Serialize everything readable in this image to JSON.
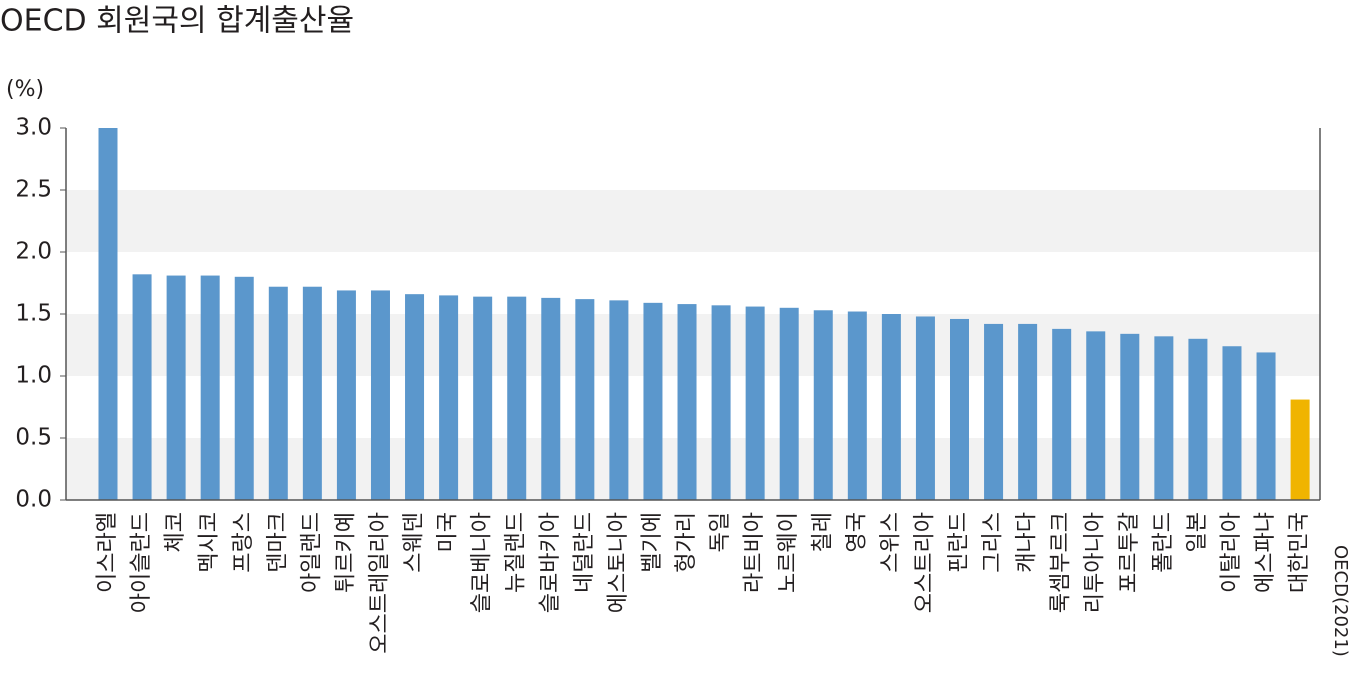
{
  "chart_data": {
    "type": "bar",
    "title": "OECD 회원국의 합계출산율",
    "y_label": "(%)",
    "source": "OECD(2021)",
    "categories": [
      "이스라엘",
      "아이슬란드",
      "체코",
      "멕시코",
      "프랑스",
      "덴마크",
      "아일랜드",
      "튀르키예",
      "오스트레일리아",
      "스웨덴",
      "미국",
      "슬로베니아",
      "뉴질랜드",
      "슬로바키아",
      "네덜란드",
      "에스토니아",
      "벨기에",
      "헝가리",
      "독일",
      "라트비아",
      "노르웨이",
      "칠레",
      "영국",
      "스위스",
      "오스트리아",
      "핀란드",
      "그리스",
      "캐나다",
      "룩셈부르크",
      "리투아니아",
      "포르투갈",
      "폴란드",
      "일본",
      "이탈리아",
      "에스파냐",
      "대한민국"
    ],
    "values": [
      3.0,
      1.82,
      1.81,
      1.81,
      1.8,
      1.72,
      1.72,
      1.69,
      1.69,
      1.66,
      1.65,
      1.64,
      1.64,
      1.63,
      1.62,
      1.61,
      1.59,
      1.58,
      1.57,
      1.56,
      1.55,
      1.53,
      1.52,
      1.5,
      1.48,
      1.46,
      1.42,
      1.42,
      1.38,
      1.36,
      1.34,
      1.32,
      1.3,
      1.24,
      1.19,
      0.81
    ],
    "colors": [
      "#5b97cc",
      "#5b97cc",
      "#5b97cc",
      "#5b97cc",
      "#5b97cc",
      "#5b97cc",
      "#5b97cc",
      "#5b97cc",
      "#5b97cc",
      "#5b97cc",
      "#5b97cc",
      "#5b97cc",
      "#5b97cc",
      "#5b97cc",
      "#5b97cc",
      "#5b97cc",
      "#5b97cc",
      "#5b97cc",
      "#5b97cc",
      "#5b97cc",
      "#5b97cc",
      "#5b97cc",
      "#5b97cc",
      "#5b97cc",
      "#5b97cc",
      "#5b97cc",
      "#5b97cc",
      "#5b97cc",
      "#5b97cc",
      "#5b97cc",
      "#5b97cc",
      "#5b97cc",
      "#5b97cc",
      "#5b97cc",
      "#5b97cc",
      "#f0b400"
    ],
    "ylim": [
      0,
      3
    ],
    "yticks": [
      {
        "value": 0,
        "label": "0.0"
      },
      0.5,
      {
        "value": 1,
        "label": "1.0"
      },
      1.5,
      {
        "value": 2,
        "label": "2.0"
      },
      2.5,
      {
        "value": 3,
        "label": "3.0"
      }
    ],
    "grid": "bands",
    "grid_color": "#f2f2f2",
    "axis_color": "#555555"
  }
}
